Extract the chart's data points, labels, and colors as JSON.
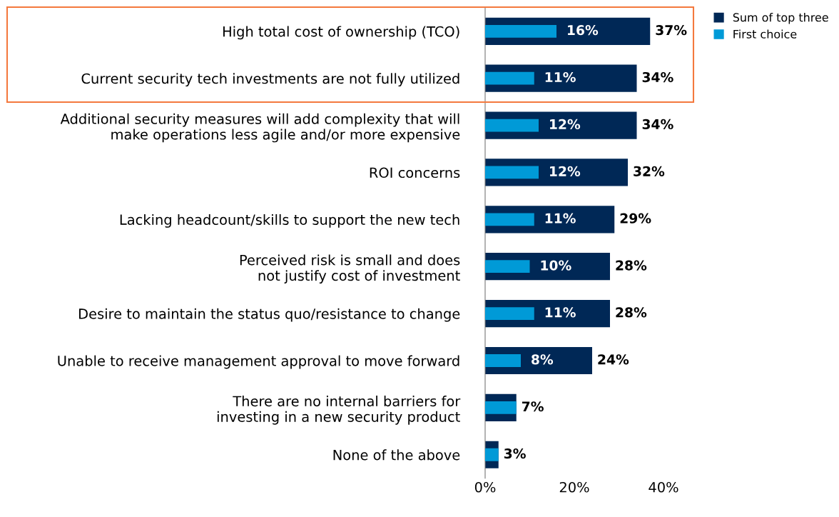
{
  "chart_data": {
    "type": "bar",
    "orientation": "horizontal",
    "categories": [
      "High total cost of ownership (TCO)",
      "Current security tech investments are not fully utilized",
      "Additional security measures will add complexity that will\nmake operations less agile and/or more expensive",
      "ROI concerns",
      "Lacking headcount/skills to support the new tech",
      "Perceived risk is small and does\nnot justify cost of investment",
      "Desire to maintain the status quo/resistance to change",
      "Unable to receive management approval to move forward",
      "There are no internal barriers for\ninvesting in a new security product",
      "None of the above"
    ],
    "series": [
      {
        "name": "Sum of top three",
        "color": "#002856",
        "values": [
          37,
          34,
          34,
          32,
          29,
          28,
          28,
          24,
          7,
          3
        ],
        "value_labels": [
          "37%",
          "34%",
          "34%",
          "32%",
          "29%",
          "28%",
          "28%",
          "24%",
          "7%",
          "3%"
        ]
      },
      {
        "name": "First choice",
        "color": "#009ad7",
        "values": [
          16,
          11,
          12,
          12,
          11,
          10,
          11,
          8,
          7,
          3
        ],
        "value_labels": [
          "16%",
          "11%",
          "12%",
          "12%",
          "11%",
          "10%",
          "11%",
          "8%",
          null,
          null
        ]
      }
    ],
    "xlim": [
      0,
      40
    ],
    "xticks": [
      {
        "value": 0,
        "label": "0%"
      },
      {
        "value": 20,
        "label": "20%"
      },
      {
        "value": 40,
        "label": "40%"
      }
    ],
    "legend": "top right",
    "grid": false
  }
}
